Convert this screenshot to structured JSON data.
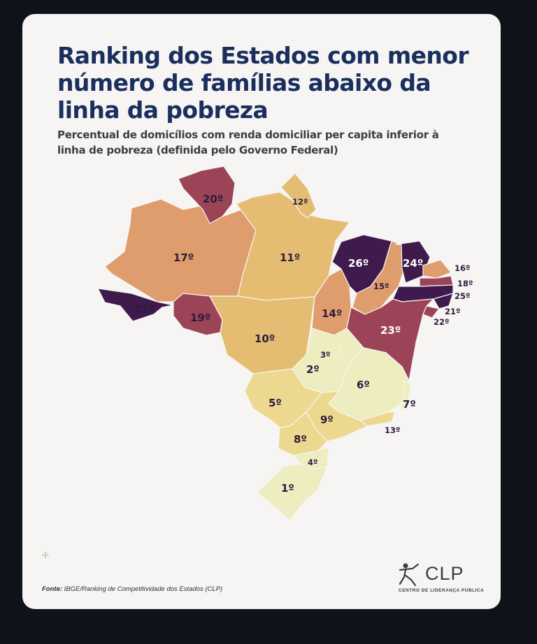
{
  "title": "Ranking dos Estados com menor número de famílias abaixo da linha da pobreza",
  "subtitle": "Percentual de domicílios com renda domiciliar per capita inferior à linha de pobreza (definida pelo Governo Federal)",
  "source": {
    "label": "Fonte:",
    "text": "IBGE/Ranking de Competitividade dos Estados (CLP)"
  },
  "logo": {
    "name": "CLP",
    "subtitle": "CENTRO DE LIDERANÇA PÚBLICA"
  },
  "colors": {
    "rank_1_4": "#eeedc0",
    "rank_5_9": "#ecd88e",
    "rank_10_13": "#e5bd72",
    "rank_14_17": "#df9c6c",
    "rank_18_23": "#9c4457",
    "rank_24_27": "#3f1a4c"
  },
  "map": {
    "states": [
      {
        "name": "AC",
        "rank": "27º"
      },
      {
        "name": "AM",
        "rank": "17º"
      },
      {
        "name": "RR",
        "rank": "20º"
      },
      {
        "name": "PA",
        "rank": "11º"
      },
      {
        "name": "AP",
        "rank": "12º"
      },
      {
        "name": "RO",
        "rank": "19º"
      },
      {
        "name": "MT",
        "rank": "10º"
      },
      {
        "name": "TO",
        "rank": "14º"
      },
      {
        "name": "MA",
        "rank": "26º"
      },
      {
        "name": "PI",
        "rank": "15º"
      },
      {
        "name": "CE",
        "rank": "24º"
      },
      {
        "name": "RN",
        "rank": "16º"
      },
      {
        "name": "PB",
        "rank": "18º"
      },
      {
        "name": "PE",
        "rank": "25º"
      },
      {
        "name": "AL",
        "rank": "21º"
      },
      {
        "name": "SE",
        "rank": "22º"
      },
      {
        "name": "BA",
        "rank": "23º"
      },
      {
        "name": "GO",
        "rank": "2º"
      },
      {
        "name": "DF",
        "rank": "3º"
      },
      {
        "name": "MG",
        "rank": "6º"
      },
      {
        "name": "ES",
        "rank": "7º"
      },
      {
        "name": "RJ",
        "rank": "13º"
      },
      {
        "name": "MS",
        "rank": "5º"
      },
      {
        "name": "SP",
        "rank": "9º"
      },
      {
        "name": "PR",
        "rank": "8º"
      },
      {
        "name": "SC",
        "rank": "4º"
      },
      {
        "name": "RS",
        "rank": "1º"
      }
    ]
  }
}
